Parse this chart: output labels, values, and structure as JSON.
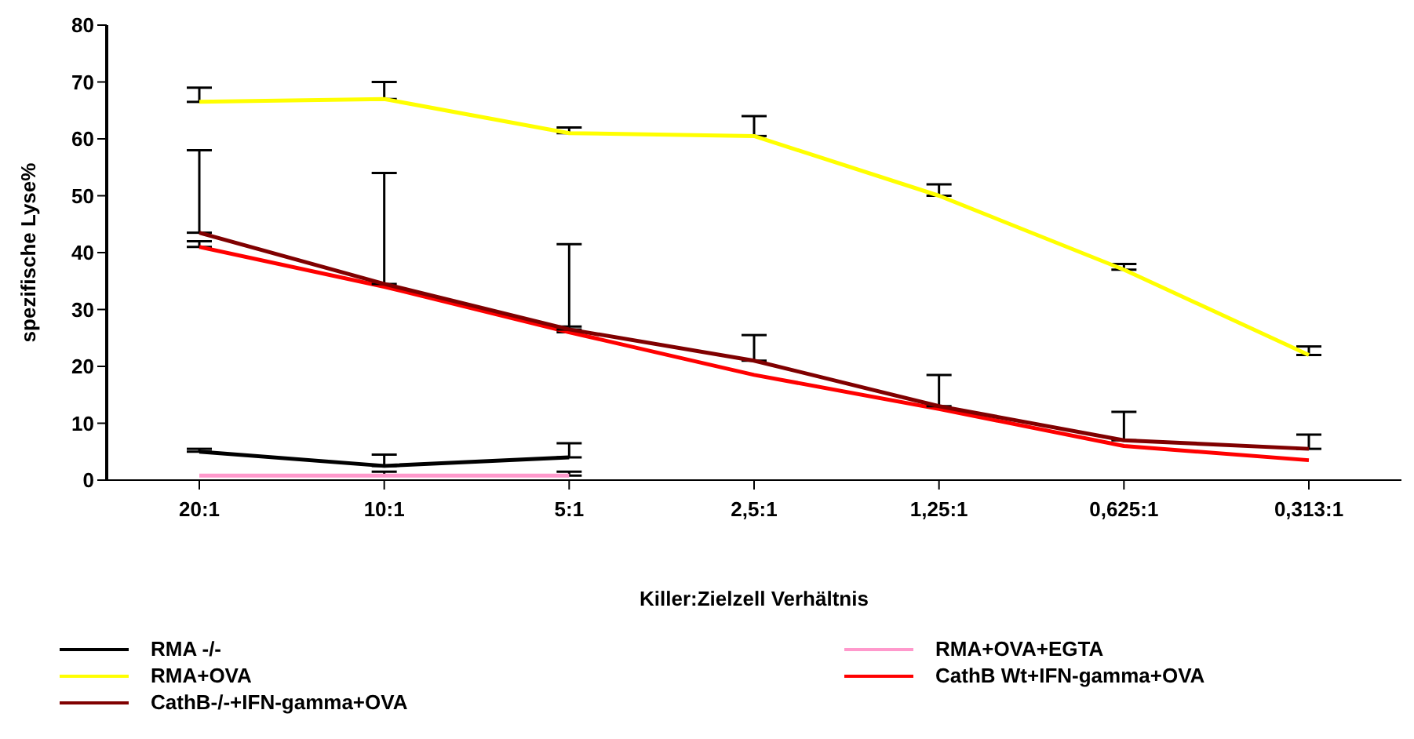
{
  "chart_data": {
    "type": "line",
    "xlabel": "Killer:Zielzell Verhältnis",
    "ylabel": "spezifische Lyse%",
    "categories": [
      "20:1",
      "10:1",
      "5:1",
      "2,5:1",
      "1,25:1",
      "0,625:1",
      "0,313:1"
    ],
    "series": [
      {
        "name": "RMA -/-",
        "color": "#000000",
        "values": [
          5,
          2.5,
          4,
          null,
          null,
          null,
          null
        ],
        "errors": [
          [
            5,
            5.5
          ],
          [
            2.5,
            4.5
          ],
          [
            4,
            6.5
          ],
          null,
          null,
          null,
          null
        ]
      },
      {
        "name": "RMA+OVA+EGTA",
        "color": "#ff99cc",
        "values": [
          0.8,
          0.8,
          0.8,
          null,
          null,
          null,
          null
        ],
        "errors": [
          null,
          [
            0.8,
            1.5
          ],
          [
            0.8,
            1.5
          ],
          null,
          null,
          null,
          null
        ]
      },
      {
        "name": "RMA+OVA",
        "color": "#ffff00",
        "values": [
          66.5,
          67,
          61,
          60.5,
          50,
          37,
          22
        ],
        "errors": [
          [
            66.5,
            69
          ],
          [
            67,
            70
          ],
          [
            61,
            62
          ],
          [
            60.5,
            64
          ],
          [
            50,
            52
          ],
          [
            37,
            38
          ],
          [
            22,
            23.5
          ]
        ]
      },
      {
        "name": "CathB Wt+IFN-gamma+OVA",
        "color": "#ff0000",
        "values": [
          41,
          34,
          26,
          18.5,
          12.5,
          6,
          3.5
        ],
        "errors": [
          [
            41,
            42
          ],
          null,
          [
            26,
            27
          ],
          null,
          null,
          null,
          null
        ]
      },
      {
        "name": "CathB-/-+IFN-gamma+OVA",
        "color": "#800000",
        "values": [
          43.5,
          34.5,
          26.5,
          21,
          13,
          7,
          5.5
        ],
        "errors": [
          [
            43.5,
            58
          ],
          [
            34.5,
            54
          ],
          [
            26.5,
            41.5
          ],
          [
            21,
            25.5
          ],
          [
            13,
            18.5
          ],
          [
            7,
            12
          ],
          [
            5.5,
            8
          ]
        ]
      }
    ],
    "ylim": [
      0,
      80
    ],
    "yticks": [
      0,
      10,
      20,
      30,
      40,
      50,
      60,
      70,
      80
    ],
    "legend": "bottom"
  }
}
